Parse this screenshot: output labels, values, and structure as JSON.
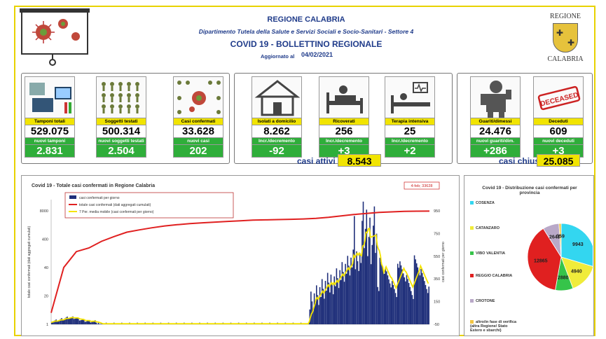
{
  "header": {
    "region": "REGIONE CALABRIA",
    "department": "Dipartimento Tutela della Salute e Servizi Sociali e Socio-Sanitari - Settore 4",
    "title": "COVID 19 - BOLLETTINO REGIONALE",
    "updated_label": "Aggiornato al",
    "updated_date": "04/02/2021",
    "logo_top": "REGIONE",
    "logo_bottom": "CALABRIA"
  },
  "tiles": [
    {
      "label": "Tamponi totali",
      "value": "529.075",
      "sub_label": "nuovi tamponi",
      "sub_value": "2.831",
      "icon": "lab-test-icon"
    },
    {
      "label": "Soggetti testati",
      "value": "500.314",
      "sub_label": "nuovi soggetti testati",
      "sub_value": "2.504",
      "icon": "people-grid-icon"
    },
    {
      "label": "Casi confermati",
      "value": "33.628",
      "sub_label": "nuovi casi",
      "sub_value": "202",
      "icon": "virus-people-icon"
    },
    {
      "label": "Isolati a domicilio",
      "value": "8.262",
      "sub_label": "Incr./decremento",
      "sub_value": "-92",
      "icon": "house-icon"
    },
    {
      "label": "Ricoverati",
      "value": "256",
      "sub_label": "Incr./decremento",
      "sub_value": "+3",
      "icon": "hospital-bed-icon"
    },
    {
      "label": "Terapia intensiva",
      "value": "25",
      "sub_label": "Incr./decremento",
      "sub_value": "+2",
      "icon": "intensive-care-icon"
    },
    {
      "label": "Guariti/dimessi",
      "value": "24.476",
      "sub_label": "nuovi guariti/dim.",
      "sub_value": "+286",
      "icon": "recovered-icon"
    },
    {
      "label": "Deceduti",
      "value": "609",
      "sub_label": "nuovi deceduti",
      "sub_value": "+3",
      "icon": "deceased-stamp-icon",
      "stamp": "DECEASED"
    }
  ],
  "summary": {
    "active_label": "casi attivi",
    "active_value": "8.543",
    "closed_label": "casi chiusi",
    "closed_value": "25.085"
  },
  "colors": {
    "yellow": "#f1e400",
    "green": "#2fae3a",
    "navy": "#1f2f7a",
    "red": "#e02020",
    "ma": "#f5e400"
  },
  "chart_data": [
    {
      "type": "bar",
      "title": "Covid 19 - Totale casi confermati in Regione Calabria",
      "legend": [
        "casi confermati per giorno",
        "totale casi confermati (dati aggregati cumulati)",
        "7 Per. media mobile (casi confermati per giorno)"
      ],
      "ylabel_left": "totale casi confermati (dati aggregati cumulati)",
      "ylabel_right": "casi confermati per giorno",
      "left_ticks": [
        "8000",
        "400",
        "40",
        "20",
        "1"
      ],
      "right_ticks": [
        "950",
        "750",
        "550",
        "350",
        "150",
        "-50"
      ],
      "annotation": "4-feb; 33628",
      "series": [
        {
          "name": "totale casi confermati (dati aggregati cumulati)",
          "values": [
            1,
            30,
            80,
            100,
            150,
            200,
            260,
            300,
            340,
            380,
            410,
            440,
            460,
            480,
            500,
            520,
            540,
            550,
            560,
            570,
            580,
            600,
            640,
            700,
            760,
            810,
            860,
            890,
            920,
            930,
            933
          ]
        }
      ]
    },
    {
      "type": "pie",
      "title": "Covid 19 - Distribuzione casi confermati per provincia",
      "categories": [
        "COSENZA",
        "CATANZARO",
        "VIBO VALENTIA",
        "REGGIO CALABRIA",
        "CROTONE",
        "altro/in fase di verifica (altra Regione/ Stato Estero e sbarchi)"
      ],
      "values": [
        9943,
        4940,
        2880,
        12865,
        2641,
        359
      ],
      "colors": [
        "#33d6f0",
        "#f0ec3a",
        "#36c44a",
        "#e02020",
        "#b9a8c8",
        "#f3c542"
      ]
    }
  ]
}
